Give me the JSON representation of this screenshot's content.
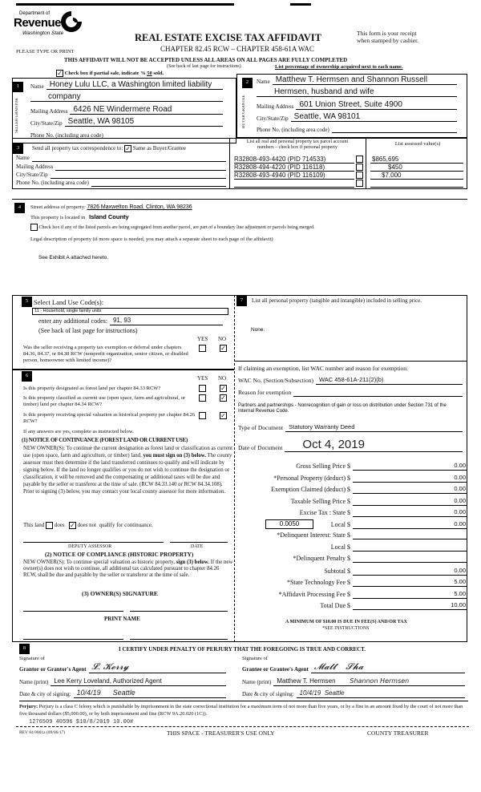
{
  "header": {
    "logo_dept": "Department of",
    "logo_name": "Revenue",
    "logo_state": "Washington State",
    "title": "REAL ESTATE EXCISE TAX AFFIDAVIT",
    "chapter": "CHAPTER 82.45 RCW – CHAPTER 458-61A WAC",
    "receipt": "This form is your receipt",
    "receipt2": "when stamped by cashier.",
    "type_or_print": "PLEASE TYPE OR PRINT",
    "warning": "THIS AFFIDAVIT WILL NOT BE ACCEPTED UNLESS ALL AREAS ON ALL PAGES ARE FULLY COMPLETED",
    "see_back": "(See back of last page for instructions)",
    "ownership_note": "List percentage of ownership acquired next to each name.",
    "partial_label": "Check box if partial sale, indicate %",
    "partial_pct": "50",
    "partial_sold": "sold."
  },
  "seller": {
    "num": "1",
    "side": "SELLER GRANTOR",
    "name_label": "Name",
    "name1": "Honey Lulu LLC, a Washington limited liability",
    "name2": "company",
    "addr_label": "Mailing Address",
    "addr": "6426 NE Windermere Road",
    "city_label": "City/State/Zip",
    "city": "Seattle, WA 98105",
    "phone_label": "Phone No. (including area code)"
  },
  "buyer": {
    "num": "2",
    "side": "BUYER GRANTEE",
    "name_label": "Name",
    "name1": "Matthew T. Hermsen and Shannon Russell",
    "name2": "Hermsen, husband and wife",
    "addr_label": "Mailing Address",
    "addr": "601 Union Street, Suite 4900",
    "city_label": "City/State/Zip",
    "city": "Seattle, WA 98101",
    "phone_label": "Phone No. (including area code)"
  },
  "correspondence": {
    "num": "3",
    "label": "Send all property tax correspondence to:",
    "same_label": "Same as Buyer/Grantee",
    "name_label": "Name",
    "addr_label": "Mailing Address",
    "city_label": "City/State/Zip",
    "phone_label": "Phone No. (including area code)"
  },
  "parcels": {
    "header": "List all real and personal property tax parcel account",
    "header2": "numbers – check box if personal property",
    "values_header": "List assessed value(s)",
    "items": [
      {
        "number": "R32808-493-4420 (PID 714533)",
        "value": "$865,695"
      },
      {
        "number": "R32808-494-4220 (PID 116118)",
        "value": "$450"
      },
      {
        "number": "R32808-493-4940 (PID 116109)",
        "value": "$7,000"
      },
      {
        "number": "",
        "value": ""
      }
    ]
  },
  "property": {
    "num": "4",
    "street_label": "Street address of property:",
    "street": "7826 Maxwelton Road, Clinton, WA 98236",
    "located_label": "This property is located in",
    "county": "Island County",
    "segregated_label": "Check box if any of the listed parcels are being segregated from another parcel, are part of a boundary line adjustment or parcels being merged.",
    "legal_label": "Legal description of property (if more space is needed, you may attach a separate sheet to each page of the affidavit)",
    "legal": "See Exhibit A attached hereto."
  },
  "land_use": {
    "num": "5",
    "label": "Select Land Use Code(s):",
    "code": "11 - Household, single family units",
    "additional_label": "enter any additional codes:",
    "additional": "91, 93",
    "see_back": "(See back of last page for instructions)",
    "yes": "YES",
    "no": "NO",
    "q1": "Was the seller receiving a property tax exemption or deferral under chapters 84.36, 84.37, or 84.38 RCW (nonprofit organization, senior citizen, or disabled person, homeowner with limited income)?"
  },
  "section6": {
    "num": "6",
    "yes": "YES",
    "no": "NO",
    "q1": "Is this property designated as forest land per chapter 84.33 RCW?",
    "q2": "Is this property classified as current use (open space, farm and agricultural, or timber) land per chapter 84.34 RCW?",
    "q3": "Is this property receiving special valuation as historical property per chapter 84.26 RCW?",
    "if_yes": "If any answers are yes, complete as instructed below.",
    "notice1_title": "(1) NOTICE OF CONTINUANCE (FOREST LAND OR CURRENT USE)",
    "notice1_a": "NEW OWNER(S): To continue the current designation as forest land or classification as current use (open space, farm and agriculture, or timber) land,",
    "notice1_b": "you must sign on (3) below.",
    "notice1_c": "The county assessor must then determine if the land transferred continues to qualify and will indicate by signing below. If the land no longer qualifies or you do not wish to continue the designation or classification, it will be removed and the compensating or additional taxes will be due and payable by the seller or transferor at the time of sale. (RCW 84.33.140 or RCW 84.34.108). Prior to signing (3) below, you may contact your local county assessor for more information.",
    "this_land": "This land",
    "does": "does",
    "does_not": "does not",
    "qualify": "qualify for continuance.",
    "deputy": "DEPUTY ASSESSOR",
    "date": "DATE",
    "notice2_title": "(2) NOTICE OF COMPLIANCE (HISTORIC PROPERTY)",
    "notice2_a": "NEW OWNER(S): To continue special valuation as historic property,",
    "notice2_b": "sign (3) below.",
    "notice2_c": "If the new owner(s) does not wish to continue, all additional tax calculated pursuant to chapter 84.26 RCW, shall be due and payable by the seller or transferor at the time of sale.",
    "owner_sig": "(3) OWNER(S) SIGNATURE",
    "print_name": "PRINT NAME"
  },
  "section7": {
    "num": "7",
    "label": "List all personal property (tangible and intangible) included in selling price.",
    "value": "None.",
    "exemption_label": "If claiming an exemption, list WAC number and reason for exemption:",
    "wac_label": "WAC No. (Section/Subsection)",
    "wac": "WAC 458-61A-211(2)(b)",
    "reason_label": "Reason for exemption",
    "reason": "Partners and partnerships - Nonrecognition of gain or loss on distribution under Section 731 of the Internal Revenue Code.",
    "doc_type_label": "Type of Document",
    "doc_type": "Statutory Warranty Deed",
    "doc_date_label": "Date of Document",
    "doc_date": "Oct 4, 2019",
    "amounts": [
      {
        "label": "Gross Selling Price $",
        "value": "0.00"
      },
      {
        "label": "*Personal Property (deduct) $",
        "value": "0.00"
      },
      {
        "label": "Exemption Claimed (deduct) $",
        "value": "0.00"
      },
      {
        "label": "Taxable Selling Price $",
        "value": "0.00"
      },
      {
        "label": "Excise Tax : State $",
        "value": "0.00"
      },
      {
        "label": "Local $",
        "value": "0.00"
      },
      {
        "label": "*Delinquent Interest: State $",
        "value": ""
      },
      {
        "label": "Local $",
        "value": ""
      },
      {
        "label": "*Delinquent Penalty $",
        "value": ""
      },
      {
        "label": "Subtotal $",
        "value": "0.00"
      },
      {
        "label": "*State Technology Fee $",
        "value": "5.00"
      },
      {
        "label": "*Affidavit Processing Fee $",
        "value": "5.00"
      },
      {
        "label": "Total Due $",
        "value": "10.00"
      }
    ],
    "local_rate": "0.0050",
    "minimum": "A MINIMUM OF $10.00 IS DUE IN FEE(S) AND/OR TAX",
    "see_instr": "*SEE INSTRUCTIONS"
  },
  "certify": {
    "num": "8",
    "text": "I CERTIFY UNDER PENALTY OF PERJURY THAT THE FOREGOING IS TRUE AND CORRECT.",
    "sig_label1": "Signature of",
    "grantor_label": "Grantor or Grantor's Agent",
    "grantee_label": "Grantee or Grantee's Agent",
    "name_label": "Name (print)",
    "grantor_name": "Lee Kerry Loveland, Authorized Agent",
    "grantee_name": "Matthew T. Hermsen",
    "grantee_name2": "Shannon Hermsen",
    "date_label": "Date & city of signing:",
    "grantor_date": "10/4/19",
    "grantor_city": "Seattle",
    "grantee_date": "10/4/19",
    "grantee_city": "Seattle"
  },
  "footer": {
    "perjury_bold": "Perjury:",
    "perjury": "Perjury is a class C felony which is punishable by imprisonment in the state correctional institution for a maximum term of not more than five years, or by a fine in an amount fixed by the court of not more than five thousand dollars ($5,000.00), or by both imprisonment and fine (RCW 9A.20.020 (1C)).",
    "stamp": "1276509 40596 $10/8/2019 10.00#",
    "rev": "REV 84 0001a (09/06/17)",
    "treasurer_space": "THIS SPACE - TREASURER'S USE ONLY",
    "county_treasurer": "COUNTY TREASURER"
  }
}
